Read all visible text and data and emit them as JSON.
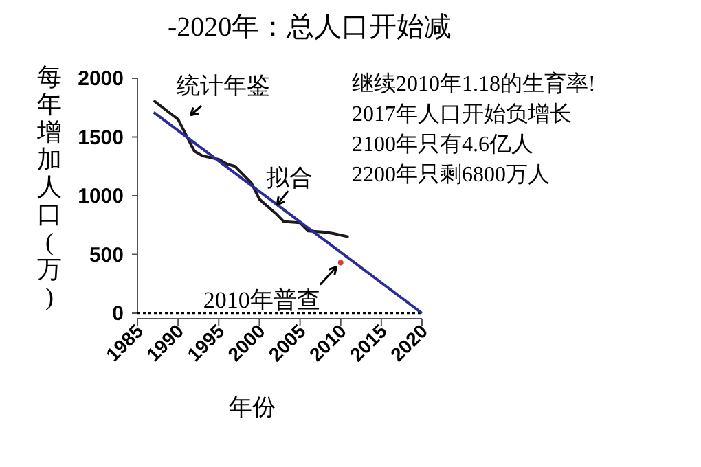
{
  "chart_data": {
    "type": "line",
    "title": "-2020年：总人口开始减",
    "xlabel": "年份",
    "ylabel": "每年增加人口(万)",
    "xlim": [
      1985,
      2020
    ],
    "ylim": [
      0,
      2000
    ],
    "xticks": [
      1985,
      1990,
      1995,
      2000,
      2005,
      2010,
      2015,
      2020
    ],
    "yticks": [
      0,
      500,
      1000,
      1500,
      2000
    ],
    "legend": false,
    "grid": false,
    "ref_lines": [
      {
        "axis": "y",
        "value": 0,
        "line_style": "dotted",
        "color": "#000000"
      }
    ],
    "annotations": [
      "继续2010年1.18的生育率!",
      "2017年人口开始负增长",
      "2100年只有4.6亿人",
      "2200年只剩6800万人"
    ],
    "series": [
      {
        "name": "统计年鉴",
        "type": "line",
        "color": "#1a1a1a",
        "x": [
          1987,
          1990,
          1992,
          1993,
          1995,
          1996,
          1997,
          1999,
          2000,
          2002,
          2003,
          2005,
          2006,
          2008,
          2009,
          2011
        ],
        "values": [
          1810,
          1650,
          1380,
          1340,
          1310,
          1270,
          1250,
          1110,
          970,
          850,
          780,
          770,
          700,
          690,
          680,
          650
        ]
      },
      {
        "name": "拟合",
        "type": "line",
        "color": "#2b2b9a",
        "x": [
          1987,
          2020
        ],
        "values": [
          1710,
          0
        ]
      },
      {
        "name": "2010年普查",
        "type": "scatter",
        "color": "#d04040",
        "x": [
          2010
        ],
        "values": [
          430
        ]
      }
    ]
  }
}
